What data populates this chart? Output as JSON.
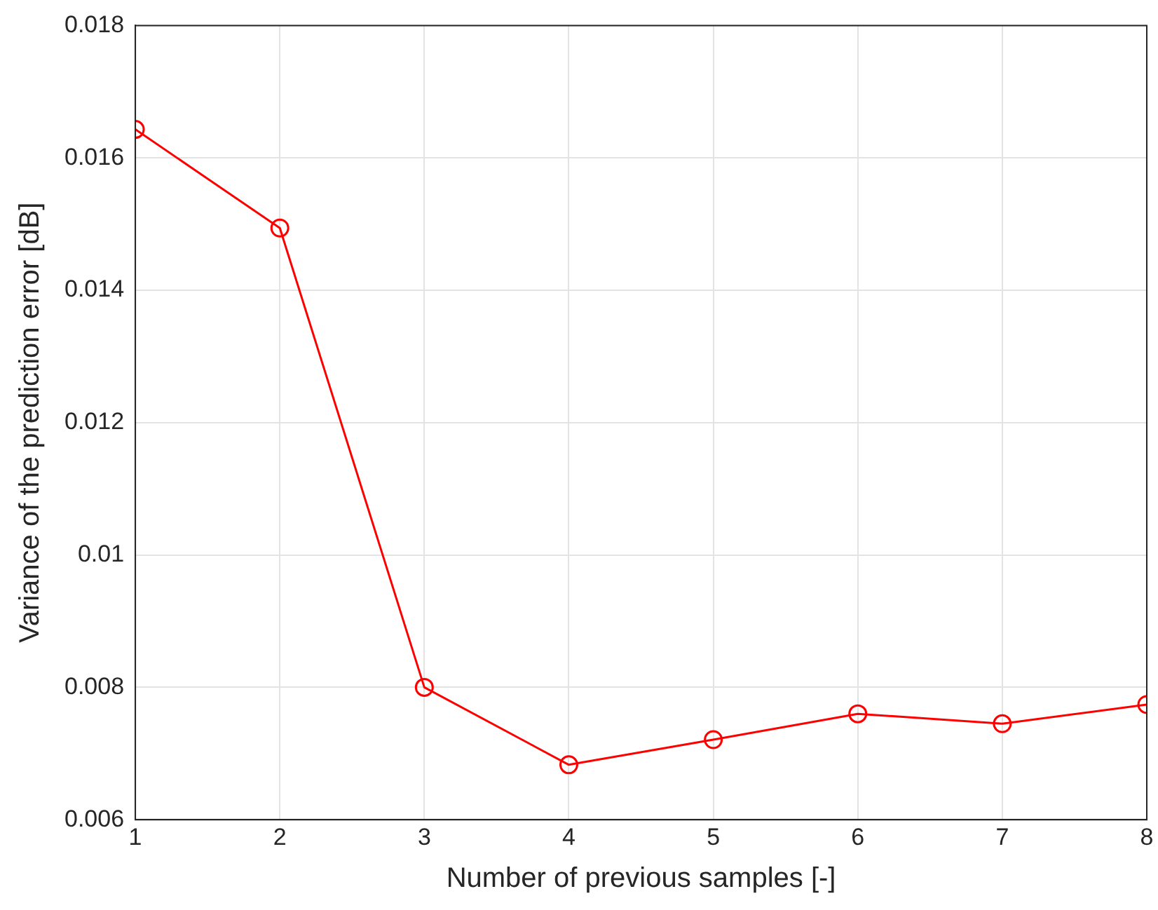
{
  "chart_data": {
    "type": "line",
    "xlabel": "Number of previous samples [-]",
    "ylabel": "Variance of the prediction error [dB]",
    "x": [
      1,
      2,
      3,
      4,
      5,
      6,
      7,
      8
    ],
    "series": [
      {
        "color": "#ff0000",
        "values": [
          0.01643,
          0.01494,
          0.008,
          0.00683,
          0.00721,
          0.0076,
          0.00745,
          0.00774
        ]
      }
    ],
    "xlim": [
      1,
      8
    ],
    "xticks": [
      1,
      2,
      3,
      4,
      5,
      6,
      7,
      8
    ],
    "ylim": [
      0.006,
      0.018
    ],
    "yticks": [
      0.006,
      0.008,
      0.01,
      0.012,
      0.014,
      0.016,
      0.018
    ],
    "grid": true,
    "legend": false,
    "marker": "circle",
    "line_style": "solid"
  }
}
